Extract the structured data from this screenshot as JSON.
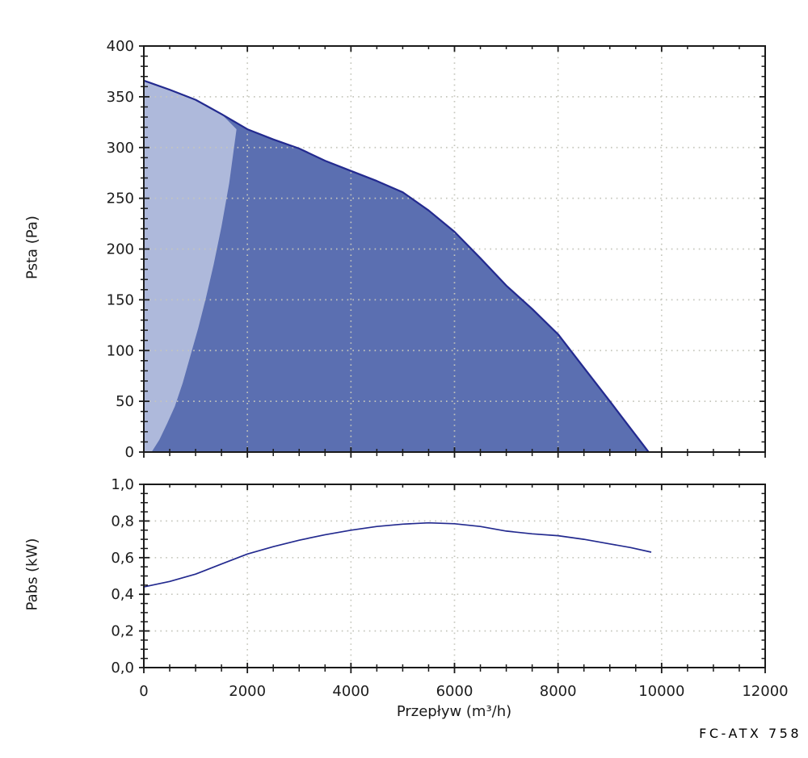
{
  "footer": {
    "model_label": "FC-ATX 758"
  },
  "colors": {
    "curve": "#232a8f",
    "fill_dark": "#5b6fb1",
    "fill_light": "#aeb9db",
    "grid": "#c5c6bc",
    "axis": "#1a1a1a",
    "text": "#1c1c1c"
  },
  "chart_data": [
    {
      "id": "pressure-plot",
      "type": "area",
      "title": "",
      "xlabel": "Przepływ (m³/h)",
      "ylabel": "Psta (Pa)",
      "xlim": [
        0,
        12000
      ],
      "ylim": [
        0,
        400
      ],
      "x_major_ticks": [
        0,
        2000,
        4000,
        6000,
        8000,
        10000,
        12000
      ],
      "x_tick_labels": [
        "0",
        "2000",
        "4000",
        "6000",
        "8000",
        "10000",
        "12000"
      ],
      "x_minor_step": 500,
      "y_major_step": 50,
      "y_minor_step": 10,
      "y_tick_labels": [
        "0",
        "50",
        "100",
        "150",
        "200",
        "250",
        "300",
        "350",
        "400"
      ],
      "grid": "dotted",
      "legend": "none",
      "series": [
        {
          "name": "fan-pressure-curve",
          "type": "line+area",
          "color": "#232a8f",
          "area_fill": "#5b6fb1",
          "points": [
            [
              0,
              366
            ],
            [
              500,
              357
            ],
            [
              1000,
              347
            ],
            [
              1500,
              333
            ],
            [
              2000,
              318
            ],
            [
              2500,
              308
            ],
            [
              3000,
              299
            ],
            [
              3500,
              287
            ],
            [
              4000,
              277
            ],
            [
              4500,
              267
            ],
            [
              5000,
              256
            ],
            [
              5500,
              238
            ],
            [
              6000,
              217
            ],
            [
              6500,
              191
            ],
            [
              7000,
              164
            ],
            [
              7500,
              141
            ],
            [
              8000,
              116
            ],
            [
              8500,
              83
            ],
            [
              9000,
              50
            ],
            [
              9300,
              30
            ],
            [
              9600,
              10
            ],
            [
              9750,
              0
            ]
          ]
        },
        {
          "name": "recommended-operating-range",
          "type": "area",
          "fill": "#aeb9db",
          "boundary_points": [
            [
              150,
              0
            ],
            [
              300,
              12
            ],
            [
              450,
              28
            ],
            [
              600,
              45
            ],
            [
              750,
              68
            ],
            [
              900,
              95
            ],
            [
              1050,
              122
            ],
            [
              1200,
              152
            ],
            [
              1350,
              185
            ],
            [
              1500,
              222
            ],
            [
              1650,
              265
            ],
            [
              1790,
              318
            ]
          ]
        }
      ]
    },
    {
      "id": "power-plot",
      "type": "line",
      "title": "",
      "xlabel": "Przepływ (m³/h)",
      "ylabel": "Pabs (kW)",
      "xlim": [
        0,
        12000
      ],
      "ylim": [
        0,
        1.0
      ],
      "x_major_ticks": [
        0,
        2000,
        4000,
        6000,
        8000,
        10000,
        12000
      ],
      "x_tick_labels": [
        "0",
        "2000",
        "4000",
        "6000",
        "8000",
        "10000",
        "12000"
      ],
      "x_minor_step": 500,
      "y_major_step": 0.2,
      "y_minor_step": 0.05,
      "y_tick_labels": [
        "0,0",
        "0,2",
        "0,4",
        "0,6",
        "0,8",
        "1,0"
      ],
      "grid": "dotted",
      "legend": "none",
      "series": [
        {
          "name": "absorbed-power-curve",
          "type": "line",
          "color": "#232a8f",
          "points": [
            [
              0,
              0.44
            ],
            [
              500,
              0.47
            ],
            [
              1000,
              0.51
            ],
            [
              1500,
              0.565
            ],
            [
              2000,
              0.62
            ],
            [
              2500,
              0.66
            ],
            [
              3000,
              0.695
            ],
            [
              3500,
              0.725
            ],
            [
              4000,
              0.75
            ],
            [
              4500,
              0.77
            ],
            [
              5000,
              0.783
            ],
            [
              5500,
              0.79
            ],
            [
              6000,
              0.785
            ],
            [
              6500,
              0.77
            ],
            [
              7000,
              0.745
            ],
            [
              7500,
              0.73
            ],
            [
              8000,
              0.72
            ],
            [
              8500,
              0.7
            ],
            [
              9000,
              0.675
            ],
            [
              9400,
              0.655
            ],
            [
              9800,
              0.63
            ]
          ]
        }
      ]
    }
  ]
}
